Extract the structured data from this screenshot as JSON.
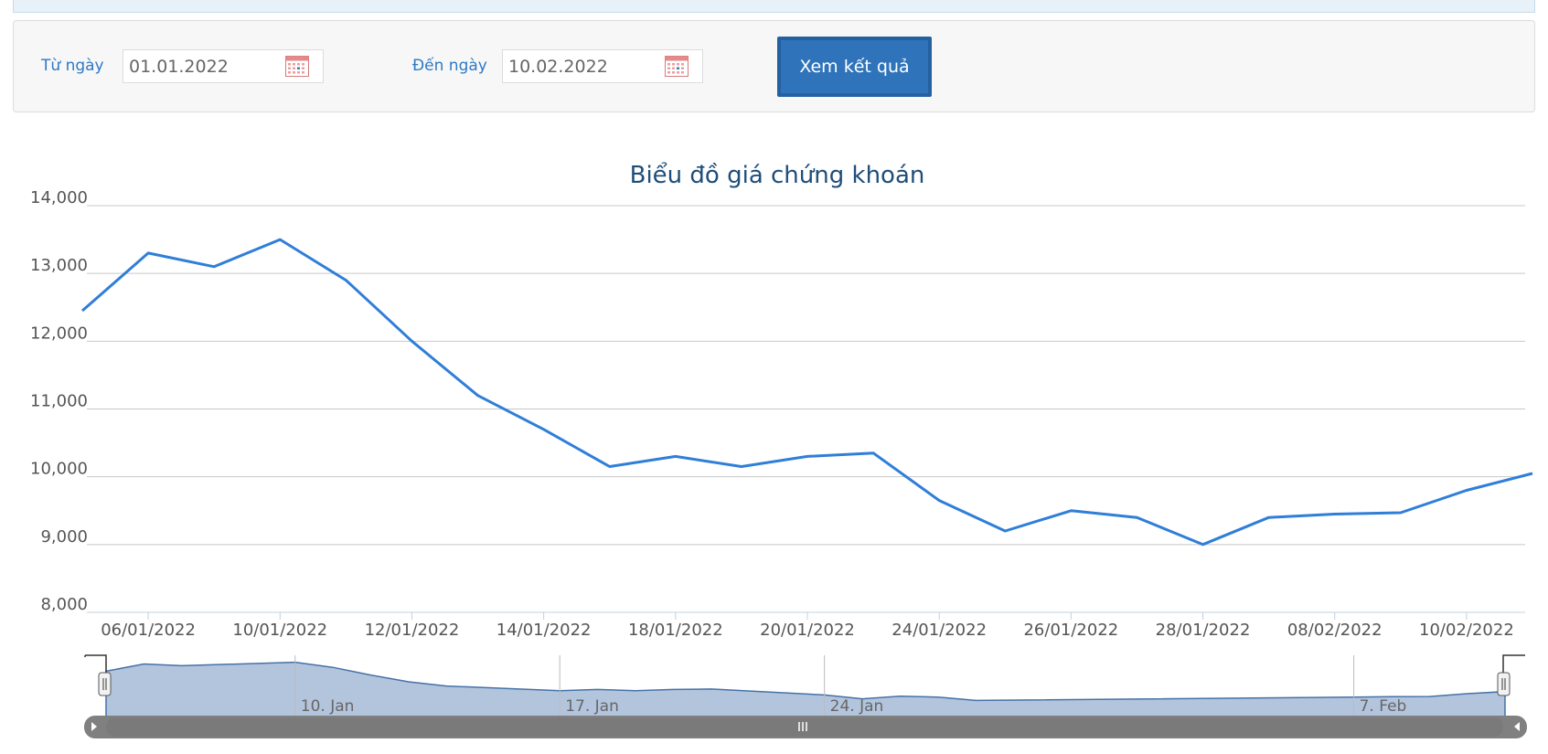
{
  "filter": {
    "from_label": "Từ ngày",
    "from_value": "01.01.2022",
    "to_label": "Đến ngày",
    "to_value": "10.02.2022",
    "submit_label": "Xem kết quả"
  },
  "colors": {
    "line": "#2f7ed8",
    "title": "#1f4e79",
    "navigator_fill": "#b3c5dd",
    "navigator_line": "#4572a7",
    "scrollbar": "#808080",
    "label_blue": "#2f79c5"
  },
  "icons": {
    "calendar": "calendar-icon",
    "scroll_left": "arrow-left-icon",
    "scroll_right": "arrow-right-icon",
    "handle": "grip-icon"
  },
  "chart_data": {
    "type": "line",
    "title": "Biểu đồ giá chứng khoán",
    "ylim": [
      8000,
      14000
    ],
    "yticks": [
      "8,000",
      "9,000",
      "10,000",
      "11,000",
      "12,000",
      "13,000",
      "14,000"
    ],
    "xtick_labels": [
      "06/01/2022",
      "10/01/2022",
      "12/01/2022",
      "14/01/2022",
      "18/01/2022",
      "20/01/2022",
      "24/01/2022",
      "26/01/2022",
      "28/01/2022",
      "08/02/2022",
      "10/02/2022"
    ],
    "grid": true,
    "legend": "none",
    "series": [
      {
        "x": [
          "05/01/2022",
          "06/01/2022",
          "07/01/2022",
          "10/01/2022",
          "11/01/2022",
          "12/01/2022",
          "13/01/2022",
          "14/01/2022",
          "17/01/2022",
          "18/01/2022",
          "19/01/2022",
          "20/01/2022",
          "21/01/2022",
          "24/01/2022",
          "25/01/2022",
          "26/01/2022",
          "27/01/2022",
          "28/01/2022",
          "07/02/2022",
          "08/02/2022",
          "09/02/2022",
          "10/02/2022",
          "11/02/2022"
        ],
        "values": [
          12450,
          13300,
          13100,
          13500,
          12900,
          12000,
          11200,
          10700,
          10150,
          10300,
          10150,
          10300,
          10350,
          9650,
          9200,
          9500,
          9400,
          9000,
          9400,
          9450,
          9470,
          9800,
          10050
        ]
      }
    ],
    "navigator": {
      "labels": [
        "10. Jan",
        "17. Jan",
        "24. Jan",
        "7. Feb"
      ]
    }
  }
}
